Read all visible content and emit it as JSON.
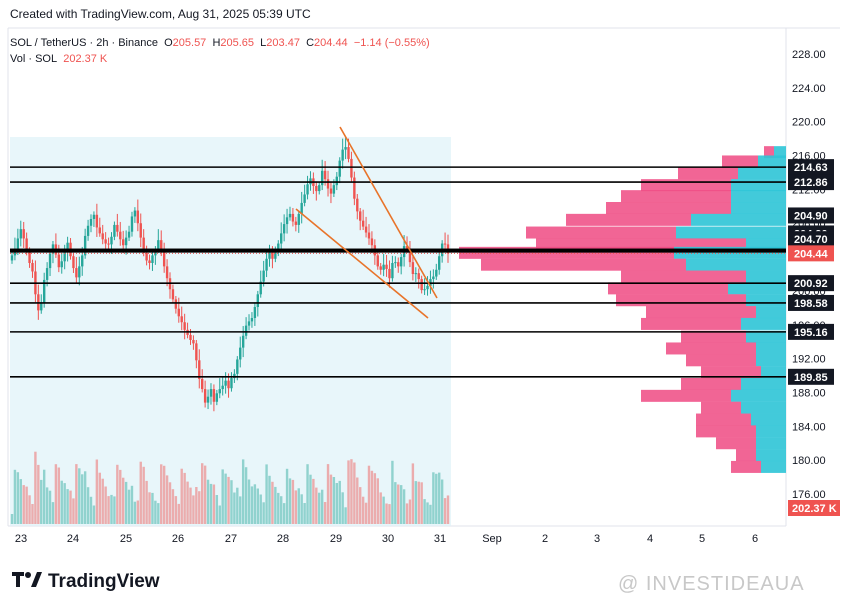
{
  "header": {
    "created": "Created with TradingView.com, Aug 31, 2025 05:39 UTC"
  },
  "legend": {
    "symbol": "SOL / TetherUS · 2h · Binance",
    "o_label": "O",
    "o": "205.57",
    "h_label": "H",
    "h": "205.65",
    "l_label": "L",
    "l": "203.47",
    "c_label": "C",
    "c": "204.44",
    "change": "−1.14 (−0.55%)",
    "vol_label": "Vol · SOL",
    "vol": "202.37 K"
  },
  "brand": {
    "logo_text": "TradingView",
    "watermark": "@ INVESTIDEAUA"
  },
  "colors": {
    "up": "#26a69a",
    "down": "#ef5350",
    "level": "#000000",
    "wedge": "#e8742a",
    "shade": "#e0f3f8",
    "vp_up": "#2ec4d6",
    "vp_down": "#ef4a82",
    "price_tag": "#ef5350"
  },
  "chart_data": {
    "type": "candlestick",
    "ylim": [
      175,
      230
    ],
    "y_ticks": [
      "176.00",
      "180.00",
      "184.00",
      "188.00",
      "192.00",
      "196.00",
      "200.00",
      "204.00",
      "208.00",
      "212.00",
      "216.00",
      "220.00",
      "224.00",
      "228.00"
    ],
    "x_ticks": [
      "23",
      "24",
      "25",
      "26",
      "27",
      "28",
      "29",
      "30",
      "31",
      "Sep",
      "2",
      "3",
      "4",
      "5",
      "6"
    ],
    "levels": [
      "214.63",
      "212.86",
      "204.90",
      "204.90",
      "204.70",
      "200.92",
      "198.58",
      "195.16",
      "189.85"
    ],
    "last_price": "204.44",
    "volume_tag": "202.37 K",
    "closes": [
      204.2,
      205.0,
      206.2,
      207.3,
      206.2,
      204.6,
      203.3,
      202.3,
      199.6,
      197.7,
      198.6,
      201.3,
      202.7,
      204.4,
      205.5,
      204.3,
      202.8,
      203.5,
      204.6,
      205.7,
      204.1,
      202.7,
      201.6,
      202.9,
      204.2,
      206.5,
      207.7,
      208.5,
      209.0,
      207.5,
      206.8,
      206.1,
      205.6,
      205.5,
      206.4,
      207.8,
      207.0,
      206.1,
      205.4,
      206.3,
      207.0,
      208.8,
      209.5,
      208.0,
      206.3,
      204.5,
      203.6,
      203.3,
      204.2,
      204.9,
      206.0,
      204.7,
      202.9,
      201.5,
      200.2,
      199.0,
      197.9,
      197.0,
      196.3,
      195.4,
      194.8,
      194.2,
      193.8,
      191.8,
      189.6,
      188.4,
      186.8,
      187.5,
      188.4,
      186.9,
      187.9,
      188.4,
      188.8,
      189.4,
      188.5,
      189.7,
      190.2,
      191.9,
      193.3,
      194.7,
      195.9,
      196.4,
      196.8,
      198.1,
      199.6,
      201.1,
      202.4,
      203.8,
      204.6,
      203.8,
      204.7,
      205.6,
      206.8,
      207.9,
      208.7,
      209.1,
      208.2,
      207.8,
      209.1,
      210.4,
      211.4,
      212.6,
      213.3,
      212.4,
      211.8,
      212.5,
      214.2,
      213.2,
      212.1,
      211.5,
      212.5,
      213.5,
      215.4,
      216.7,
      217.0,
      215.6,
      213.4,
      210.9,
      209.4,
      208.3,
      207.6,
      206.9,
      206.2,
      205.4,
      204.2,
      202.9,
      202.5,
      203.1,
      202.6,
      201.5,
      203.3,
      203.4,
      202.9,
      204.0,
      205.3,
      204.9,
      203.4,
      202.0,
      202.1,
      201.4,
      200.1,
      200.2,
      200.6,
      201.4,
      201.7,
      202.5,
      204.1,
      205.6,
      205.5,
      204.44
    ],
    "volume_scale": "relative"
  }
}
